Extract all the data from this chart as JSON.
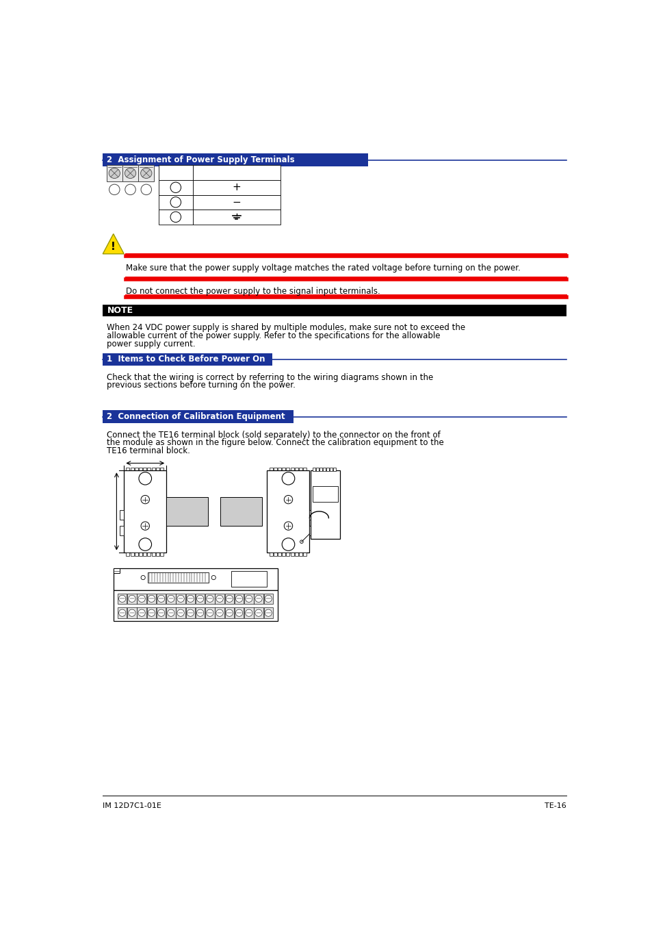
{
  "page_bg": "#ffffff",
  "blue_header_color": "#1a3399",
  "red_line_color": "#ee0000",
  "black_bar_color": "#000000",
  "section1_header_text": "2  Assignment of Power Supply Terminals",
  "table_rows": [
    [
      "",
      ""
    ],
    [
      "○",
      "+"
    ],
    [
      "○",
      "−"
    ],
    [
      "○",
      "⏚"
    ]
  ],
  "caution_text1": "Make sure that the power supply voltage matches the rated voltage before turning on the power.",
  "caution_text2": "Do not connect the power supply to the signal input terminals.",
  "black_bar_text": "NOTE",
  "note_lines": [
    "When 24 VDC power supply is shared by multiple modules, make sure not to exceed the",
    "allowable current of the power supply. Refer to the specifications for the allowable",
    "power supply current."
  ],
  "section2_header_text": "1  Items to Check Before Power On",
  "section2_body": [
    "Check that the wiring is correct by referring to the wiring diagrams shown in the",
    "previous sections before turning on the power."
  ],
  "section3_header_text": "2  Connection of Calibration Equipment",
  "section3_body": [
    "Connect the TE16 terminal block (sold separately) to the connector on the front of",
    "the module as shown in the figure below. Connect the calibration equipment to the",
    "TE16 terminal block."
  ],
  "footer_text": "IM 12D7C1-01E",
  "page_num": "TE-16"
}
